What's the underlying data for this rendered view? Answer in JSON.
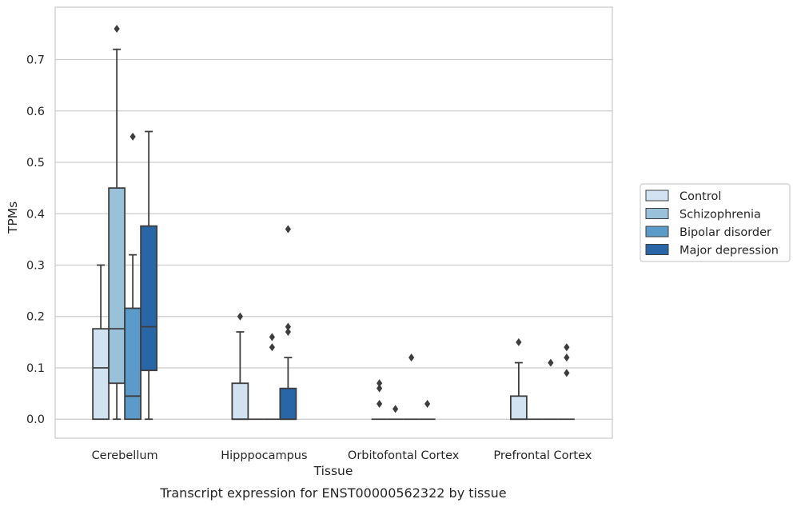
{
  "caption": "Transcript expression for ENST00000562322 by tissue",
  "chart_data": {
    "type": "boxplot",
    "xlabel": "Tissue",
    "ylabel": "TPMs",
    "ylim": [
      -0.037,
      0.802
    ],
    "yticks": [
      0.0,
      0.1,
      0.2,
      0.3,
      0.4,
      0.5,
      0.6,
      0.7
    ],
    "ytick_labels": [
      "0.0",
      "0.1",
      "0.2",
      "0.3",
      "0.4",
      "0.5",
      "0.6",
      "0.7"
    ],
    "grid": "horizontal",
    "legend_position": "right-center",
    "categories": [
      "Cerebellum",
      "Hipppocampus",
      "Orbitofontal Cortex",
      "Prefrontal Cortex"
    ],
    "series": [
      {
        "name": "Control",
        "color": "#d2e2f1",
        "boxes": [
          {
            "q1": 0.0,
            "median": 0.1,
            "q3": 0.176,
            "whisker_low": 0.0,
            "whisker_high": 0.3,
            "outliers": []
          },
          {
            "q1": 0.0,
            "median": 0.0,
            "q3": 0.07,
            "whisker_low": 0.0,
            "whisker_high": 0.17,
            "outliers": [
              0.2
            ]
          },
          {
            "q1": 0.0,
            "median": 0.0,
            "q3": 0.0,
            "whisker_low": 0.0,
            "whisker_high": 0.0,
            "outliers": [
              0.03,
              0.06,
              0.07
            ]
          },
          {
            "q1": 0.0,
            "median": 0.0,
            "q3": 0.045,
            "whisker_low": 0.0,
            "whisker_high": 0.11,
            "outliers": [
              0.15
            ]
          }
        ]
      },
      {
        "name": "Schizophrenia",
        "color": "#9ac1da",
        "boxes": [
          {
            "q1": 0.07,
            "median": 0.176,
            "q3": 0.45,
            "whisker_low": 0.0,
            "whisker_high": 0.72,
            "outliers": [
              0.76
            ]
          },
          {
            "q1": 0.0,
            "median": 0.0,
            "q3": 0.0,
            "whisker_low": 0.0,
            "whisker_high": 0.0,
            "outliers": []
          },
          {
            "q1": 0.0,
            "median": 0.0,
            "q3": 0.0,
            "whisker_low": 0.0,
            "whisker_high": 0.0,
            "outliers": [
              0.02
            ]
          },
          {
            "q1": 0.0,
            "median": 0.0,
            "q3": 0.0,
            "whisker_low": 0.0,
            "whisker_high": 0.0,
            "outliers": []
          }
        ]
      },
      {
        "name": "Bipolar disorder",
        "color": "#5a9bc9",
        "boxes": [
          {
            "q1": 0.0,
            "median": 0.045,
            "q3": 0.216,
            "whisker_low": 0.0,
            "whisker_high": 0.32,
            "outliers": [
              0.55
            ]
          },
          {
            "q1": 0.0,
            "median": 0.0,
            "q3": 0.0,
            "whisker_low": 0.0,
            "whisker_high": 0.0,
            "outliers": [
              0.14,
              0.16
            ]
          },
          {
            "q1": 0.0,
            "median": 0.0,
            "q3": 0.0,
            "whisker_low": 0.0,
            "whisker_high": 0.0,
            "outliers": [
              0.12
            ]
          },
          {
            "q1": 0.0,
            "median": 0.0,
            "q3": 0.0,
            "whisker_low": 0.0,
            "whisker_high": 0.0,
            "outliers": [
              0.11
            ]
          }
        ]
      },
      {
        "name": "Major depression",
        "color": "#2966a8",
        "boxes": [
          {
            "q1": 0.095,
            "median": 0.18,
            "q3": 0.376,
            "whisker_low": 0.0,
            "whisker_high": 0.56,
            "outliers": []
          },
          {
            "q1": 0.0,
            "median": 0.0,
            "q3": 0.06,
            "whisker_low": 0.0,
            "whisker_high": 0.12,
            "outliers": [
              0.17,
              0.18,
              0.37
            ]
          },
          {
            "q1": 0.0,
            "median": 0.0,
            "q3": 0.0,
            "whisker_low": 0.0,
            "whisker_high": 0.0,
            "outliers": [
              0.03
            ]
          },
          {
            "q1": 0.0,
            "median": 0.0,
            "q3": 0.0,
            "whisker_low": 0.0,
            "whisker_high": 0.0,
            "outliers": [
              0.09,
              0.12,
              0.14
            ]
          }
        ]
      }
    ]
  }
}
